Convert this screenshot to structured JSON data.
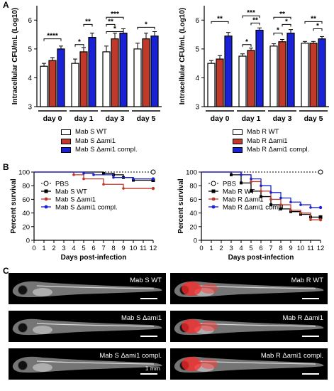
{
  "figure": {
    "panel_a": "A",
    "panel_b": "B",
    "panel_c": "C"
  },
  "colors": {
    "wt": "#ffffff",
    "ami1": "#c0392b",
    "compl": "#1a22d6",
    "pbs": "#ffffff",
    "wt_line": "#000000",
    "ami1_line": "#c0392b",
    "compl_line": "#1a22d6"
  },
  "chart_data": [
    {
      "type": "bar",
      "ylabel": "Intracellular CFU/mL (Log10)",
      "ylim": [
        3,
        6.5
      ],
      "yticks": [
        "3",
        "4",
        "5",
        "6"
      ],
      "categories": [
        "day 0",
        "day 1",
        "day 3",
        "day 5"
      ],
      "series": [
        {
          "name": "Mab S WT",
          "values": [
            4.4,
            4.5,
            4.9,
            5.0
          ],
          "errors": [
            0.1,
            0.15,
            0.2,
            0.2
          ]
        },
        {
          "name": "Mab S Δami1",
          "values": [
            4.6,
            4.9,
            5.35,
            5.35
          ],
          "errors": [
            0.1,
            0.15,
            0.2,
            0.2
          ]
        },
        {
          "name": "Mab S Δami1 compl.",
          "values": [
            5.0,
            5.4,
            5.55,
            5.45
          ],
          "errors": [
            0.1,
            0.15,
            0.15,
            0.15
          ]
        }
      ],
      "significance": [
        {
          "text": "****",
          "from": 0,
          "to": 2,
          "cat": 0,
          "y": 5.35
        },
        {
          "text": "**",
          "from": 1,
          "to": 2,
          "cat": 1,
          "y": 5.85
        },
        {
          "text": "*",
          "from": 0,
          "to": 1,
          "cat": 1,
          "y": 5.15
        },
        {
          "text": "***",
          "from": 0,
          "to": 2,
          "cat": 2,
          "y": 6.1
        },
        {
          "text": "**",
          "from": 0,
          "to": 1,
          "cat": 2,
          "y": 5.85
        },
        {
          "text": "*",
          "from": 0,
          "to": 2,
          "cat": 2,
          "y": 5.6
        },
        {
          "text": "*",
          "from": 0,
          "to": 2,
          "cat": 3,
          "y": 5.75
        }
      ],
      "legend": [
        "Mab S WT",
        "Mab S Δami1",
        "Mab S Δami1 compl."
      ]
    },
    {
      "type": "bar",
      "ylabel": "Intracellular CFU/mL (Log10)",
      "ylim": [
        3,
        6.5
      ],
      "yticks": [
        "3",
        "4",
        "5",
        "6"
      ],
      "categories": [
        "day 0",
        "day 1",
        "day 3",
        "day 5"
      ],
      "series": [
        {
          "name": "Mab R WT",
          "values": [
            4.5,
            4.75,
            5.1,
            5.2
          ],
          "errors": [
            0.1,
            0.08,
            0.08,
            0.06
          ]
        },
        {
          "name": "Mab R Δami1",
          "values": [
            4.65,
            4.95,
            5.25,
            5.2
          ],
          "errors": [
            0.12,
            0.08,
            0.08,
            0.06
          ]
        },
        {
          "name": "Mab R Δami1 compl.",
          "values": [
            5.45,
            5.65,
            5.55,
            5.35
          ],
          "errors": [
            0.12,
            0.08,
            0.12,
            0.08
          ]
        }
      ],
      "significance": [
        {
          "text": "**",
          "from": 0,
          "to": 2,
          "cat": 0,
          "y": 5.95
        },
        {
          "text": "***",
          "from": 0,
          "to": 2,
          "cat": 1,
          "y": 6.15
        },
        {
          "text": "**",
          "from": 1,
          "to": 2,
          "cat": 1,
          "y": 5.9
        },
        {
          "text": "*",
          "from": 0,
          "to": 1,
          "cat": 1,
          "y": 5.15
        },
        {
          "text": "**",
          "from": 0,
          "to": 2,
          "cat": 2,
          "y": 6.1
        },
        {
          "text": "*",
          "from": 1,
          "to": 2,
          "cat": 2,
          "y": 5.85
        },
        {
          "text": "*",
          "from": 0,
          "to": 1,
          "cat": 2,
          "y": 5.55
        },
        {
          "text": "**",
          "from": 0,
          "to": 2,
          "cat": 3,
          "y": 5.95
        },
        {
          "text": "*",
          "from": 1,
          "to": 2,
          "cat": 3,
          "y": 5.7
        }
      ],
      "legend": [
        "Mab R WT",
        "Mab R Δami1",
        "Mab R Δami1 compl."
      ]
    },
    {
      "type": "line",
      "xlabel": "Days post-infection",
      "ylabel": "Percent survival",
      "xlim": [
        0,
        12
      ],
      "ylim": [
        0,
        100
      ],
      "xticks": [
        "0",
        "1",
        "2",
        "3",
        "4",
        "5",
        "6",
        "7",
        "8",
        "9",
        "10",
        "11",
        "12"
      ],
      "yticks": [
        "0",
        "20",
        "40",
        "60",
        "80",
        "100"
      ],
      "series": [
        {
          "name": "PBS",
          "style": "dashed",
          "x": [
            0,
            12
          ],
          "y": [
            100,
            100
          ]
        },
        {
          "name": "Mab S WT",
          "style": "step",
          "x": [
            0,
            7,
            8,
            9,
            10,
            12
          ],
          "y": [
            100,
            98,
            96,
            92,
            88,
            88
          ]
        },
        {
          "name": "Mab S Δami1",
          "style": "step",
          "x": [
            0,
            4,
            5,
            7,
            9,
            12
          ],
          "y": [
            100,
            96,
            90,
            82,
            76,
            76
          ]
        },
        {
          "name": "Mab S Δami1 compl.",
          "style": "step",
          "x": [
            0,
            5,
            6,
            8,
            10,
            12
          ],
          "y": [
            100,
            98,
            96,
            92,
            90,
            90
          ]
        }
      ],
      "legend": [
        "PBS",
        "Mab S WT",
        "Mab S Δami1",
        "Mab S Δami1 compl."
      ]
    },
    {
      "type": "line",
      "xlabel": "Days post-infection",
      "ylabel": "Percent survival",
      "xlim": [
        0,
        12
      ],
      "ylim": [
        0,
        100
      ],
      "xticks": [
        "0",
        "1",
        "2",
        "3",
        "4",
        "5",
        "6",
        "7",
        "8",
        "9",
        "10",
        "11",
        "12"
      ],
      "yticks": [
        "0",
        "20",
        "40",
        "60",
        "80",
        "100"
      ],
      "series": [
        {
          "name": "PBS",
          "style": "dashed",
          "x": [
            0,
            12
          ],
          "y": [
            100,
            100
          ]
        },
        {
          "name": "Mab R WT",
          "style": "step",
          "x": [
            0,
            3,
            4,
            5,
            6,
            7,
            8,
            9,
            10,
            11,
            12
          ],
          "y": [
            100,
            96,
            84,
            72,
            64,
            52,
            46,
            42,
            38,
            34,
            34
          ]
        },
        {
          "name": "Mab R Δami1",
          "style": "step",
          "x": [
            0,
            4,
            5,
            6,
            7,
            8,
            9,
            10,
            11,
            12
          ],
          "y": [
            100,
            96,
            86,
            72,
            60,
            52,
            44,
            40,
            30,
            30
          ]
        },
        {
          "name": "Mab R Δami1 compl.",
          "style": "step",
          "x": [
            0,
            4,
            5,
            6,
            7,
            8,
            9,
            10,
            11,
            12
          ],
          "y": [
            100,
            96,
            90,
            80,
            70,
            62,
            56,
            52,
            48,
            48
          ]
        }
      ],
      "legend": [
        "PBS",
        "Mab R WT",
        "Mab R Δami1",
        "Mab R Δami1 compl."
      ]
    }
  ],
  "images": [
    {
      "label": "Mab S WT",
      "red": false
    },
    {
      "label": "Mab R WT",
      "red": true
    },
    {
      "label": "Mab S Δami1",
      "red": false
    },
    {
      "label": "Mab R Δami1",
      "red": true
    },
    {
      "label": "Mab S Δami1 compl.",
      "red": false
    },
    {
      "label": "Mab R Δami1 compl.",
      "red": true
    }
  ],
  "scale_bar": "1 mm"
}
